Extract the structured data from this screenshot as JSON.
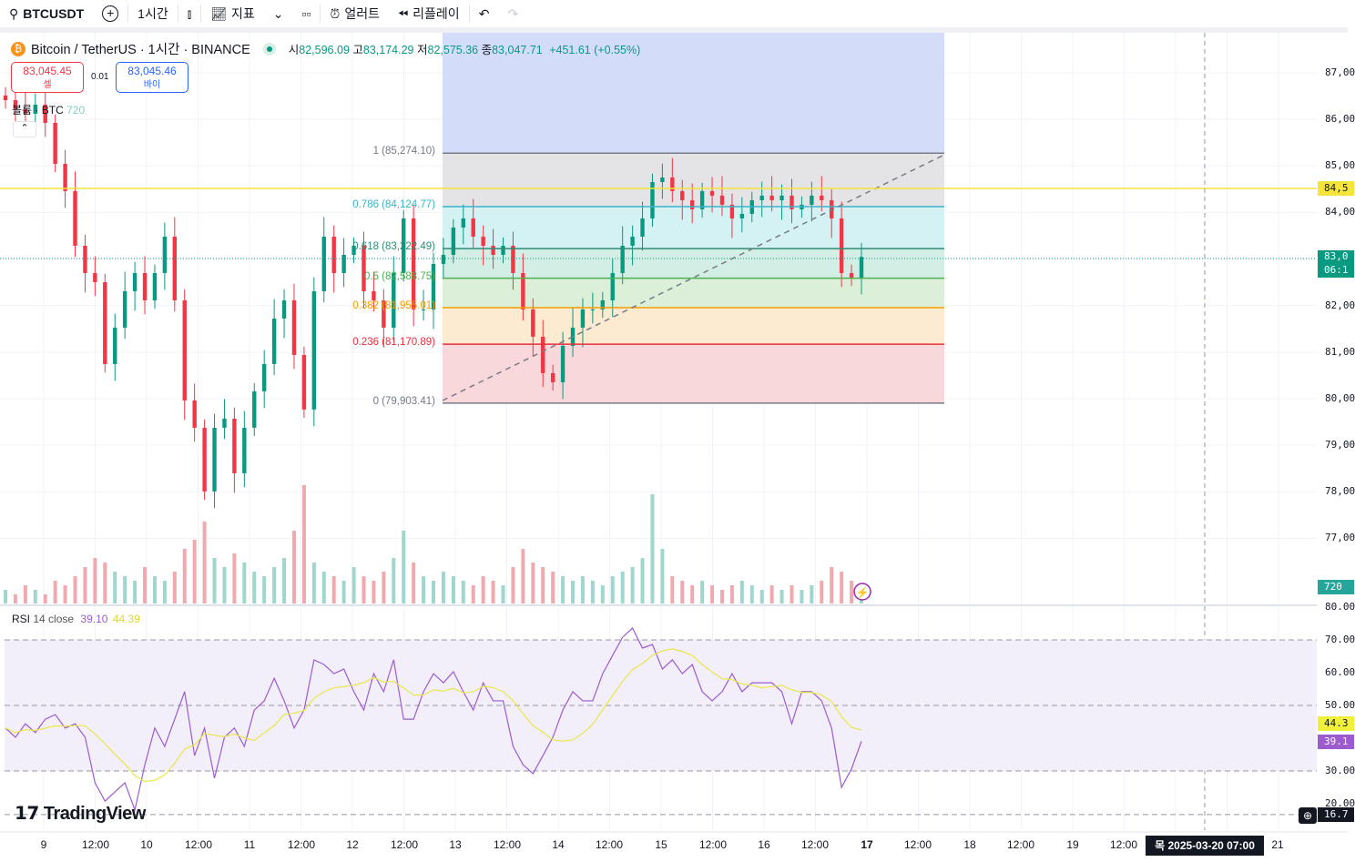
{
  "toolbar": {
    "symbol": "BTCUSDT",
    "interval": "1시간",
    "indicators": "지표",
    "alert": "얼러트",
    "replay": "리플레이",
    "icons": [
      "search-icon",
      "plus-circle-icon",
      "candles-icon",
      "indicators-icon",
      "chevron-down-icon",
      "layout-grid-icon",
      "alarm-icon",
      "replay-icon",
      "undo-icon",
      "redo-icon"
    ]
  },
  "legend": {
    "title": "Bitcoin / TetherUS · 1시간 · BINANCE",
    "o_label": "시",
    "o": "82,596.09",
    "h_label": "고",
    "h": "83,174.29",
    "l_label": "저",
    "l": "82,575.36",
    "c_label": "종",
    "c": "83,047.71",
    "change": "+451.61 (+0.55%)"
  },
  "trade": {
    "sell_price": "83,045.45",
    "sell_label": "셀",
    "spread": "0.01",
    "buy_price": "83,045.46",
    "buy_label": "바이"
  },
  "volume": {
    "label": "볼륨 · BTC",
    "value": "720"
  },
  "rsi": {
    "label": "RSI",
    "params": "14 close",
    "value": "39.10",
    "ma_value": "44.39"
  },
  "colors": {
    "up": "#089981",
    "down": "#f23645",
    "rsi": "#9c5ccf",
    "rsi_ma": "#e8e84a",
    "hline": "#f5e43a"
  },
  "price_axis": {
    "ticks": [
      "87,00",
      "86,00",
      "85,00",
      "84,00",
      "82,00",
      "81,00",
      "80,00",
      "79,00",
      "78,00",
      "77,00"
    ],
    "hline_tag": "84,5",
    "last_tag": "83,0",
    "countdown": "06:1",
    "volume_tag": "720"
  },
  "rsi_axis": {
    "ticks": [
      "80.00",
      "70.00",
      "60.00",
      "50.00",
      "30.00",
      "20.00"
    ],
    "ma_tag": "44.3",
    "rsi_tag": "39.1",
    "crosshair_tag": "16.7"
  },
  "fib": [
    {
      "label": "1 (85,274.10)",
      "color": "#787b86"
    },
    {
      "label": "0.786 (84,124.77)",
      "color": "#3bb3c9"
    },
    {
      "label": "0.618 (83,222.49)",
      "color": "#2e8b74"
    },
    {
      "label": "0.5 (82,588.75)",
      "color": "#4caf50"
    },
    {
      "label": "0.382 (81,955.01)",
      "color": "#f59b00"
    },
    {
      "label": "0.236 (81,170.89)",
      "color": "#e5303f"
    },
    {
      "label": "0 (79,903.41)",
      "color": "#787b86"
    }
  ],
  "time_axis": {
    "labels": [
      "9",
      "12:00",
      "10",
      "12:00",
      "11",
      "12:00",
      "12",
      "12:00",
      "13",
      "12:00",
      "14",
      "12:00",
      "15",
      "12:00",
      "16",
      "12:00",
      "17",
      "12:00",
      "18",
      "12:00",
      "19",
      "12:00",
      "21"
    ],
    "crosshair": "목 2025-03-20   07:00"
  },
  "brand": "TradingView",
  "chart_data": {
    "type": "candlestick",
    "closes": [
      86413,
      86218,
      86120,
      86316,
      85925,
      85045,
      84459,
      83285,
      82699,
      82503,
      80744,
      81526,
      82308,
      82699,
      82112,
      82699,
      83481,
      82112,
      79962,
      79375,
      78007,
      79375,
      79571,
      78398,
      79375,
      80157,
      80744,
      81721,
      82112,
      80940,
      79767,
      82308,
      83481,
      82699,
      83090,
      83285,
      82308,
      82112,
      81526,
      82699,
      83872,
      81917,
      81917,
      82895,
      83090,
      83676,
      83872,
      83481,
      83285,
      83090,
      83285,
      82699,
      81917,
      81331,
      80549,
      80353,
      81135,
      81526,
      81917,
      81917,
      82112,
      82699,
      83285,
      83481,
      83872,
      84654,
      84752,
      84459,
      84263,
      84068,
      84459,
      84361,
      84166,
      83872,
      83970,
      84263,
      84361,
      84263,
      84361,
      84068,
      84166,
      84361,
      84263,
      83872,
      82699,
      82601,
      83047
    ],
    "volumes": [
      3,
      2,
      4,
      3,
      2,
      5,
      4,
      6,
      8,
      10,
      9,
      7,
      6,
      5,
      8,
      6,
      5,
      7,
      12,
      14,
      18,
      10,
      8,
      11,
      9,
      7,
      6,
      8,
      10,
      16,
      26,
      9,
      7,
      6,
      5,
      8,
      6,
      5,
      7,
      10,
      16,
      9,
      6,
      5,
      7,
      6,
      5,
      4,
      6,
      5,
      4,
      8,
      12,
      9,
      8,
      7,
      6,
      5,
      6,
      5,
      4,
      6,
      7,
      8,
      10,
      24,
      12,
      6,
      5,
      4,
      5,
      4,
      3,
      4,
      5,
      4,
      3,
      4,
      3,
      4,
      3,
      4,
      5,
      8,
      7,
      5,
      3
    ],
    "rsi": [
      43.1,
      40.3,
      44.4,
      41.7,
      45.8,
      47.2,
      43.1,
      44.4,
      40.3,
      26.4,
      20.8,
      23.6,
      26.4,
      18.1,
      31.9,
      43.1,
      37.5,
      45.8,
      54.2,
      34.7,
      43.1,
      27.8,
      40.3,
      43.1,
      37.5,
      48.6,
      51.4,
      58.3,
      51.4,
      43.1,
      48.6,
      63.9,
      62.5,
      59.7,
      61.1,
      54.2,
      48.6,
      59.7,
      54.2,
      63.9,
      45.8,
      45.8,
      54.2,
      59.7,
      56.9,
      60.3,
      54.2,
      48.6,
      56.9,
      51.4,
      51.4,
      37.5,
      31.9,
      29.2,
      34.7,
      40.3,
      48.6,
      54.2,
      51.4,
      51.4,
      59.7,
      65.3,
      70.8,
      73.6,
      67.5,
      68.6,
      61.1,
      63.9,
      59.7,
      62.5,
      54.2,
      51.4,
      54.2,
      59.7,
      54.2,
      56.9,
      56.9,
      56.9,
      54.2,
      44.4,
      54.2,
      54.2,
      51.4,
      43.1,
      25.0,
      30.6,
      39.1
    ],
    "price_range": [
      76500,
      87500
    ],
    "rsi_levels": [
      70,
      50,
      30
    ]
  }
}
